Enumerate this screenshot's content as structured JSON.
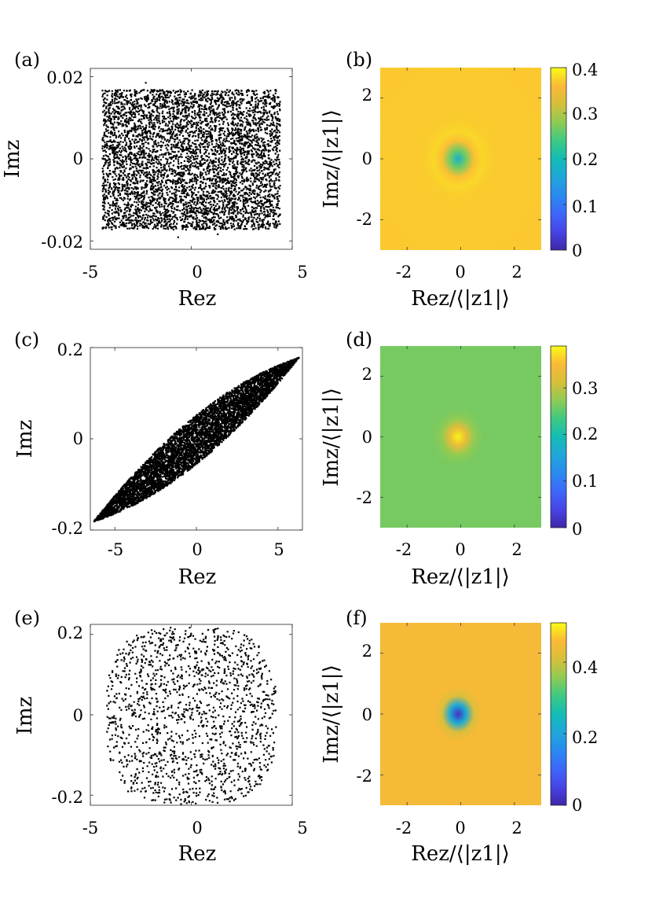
{
  "figure": {
    "panel_labels": [
      "(a)",
      "(b)",
      "(c)",
      "(d)",
      "(e)",
      "(f)"
    ]
  },
  "chart_data": [
    {
      "id": "a",
      "type": "scatter",
      "xlabel": "Rez",
      "ylabel": "Imz",
      "xlim": [
        -5,
        5
      ],
      "ylim": [
        -0.022,
        0.022
      ],
      "xticks": [
        -5,
        0,
        5
      ],
      "xtick_labels": [
        "-5",
        "0",
        "5"
      ],
      "yticks": [
        -0.02,
        0,
        0.02
      ],
      "ytick_labels": [
        "-0.02",
        "0",
        "0.02"
      ],
      "color": "#000000",
      "distribution": {
        "shape": "rectangle",
        "x_range": [
          -4.4,
          4.4
        ],
        "y_range": [
          -0.017,
          0.017
        ],
        "n_points": 5000
      }
    },
    {
      "id": "b",
      "type": "heatmap",
      "xlabel": "Rez/⟨|z1|⟩",
      "ylabel": "Imz/⟨|z1|⟩",
      "xlim": [
        -3,
        3
      ],
      "ylim": [
        -3,
        3
      ],
      "xticks": [
        -2,
        0,
        2
      ],
      "xtick_labels": [
        "-2",
        "0",
        "2"
      ],
      "yticks": [
        -2,
        0,
        2
      ],
      "ytick_labels": [
        "-2",
        "0",
        "2"
      ],
      "clim": [
        0,
        0.4
      ],
      "colorbar_ticks": [
        0,
        0.1,
        0.2,
        0.3,
        0.4
      ],
      "colorbar_tick_labels": [
        "0",
        "0.1",
        "0.2",
        "0.3",
        "0.4"
      ],
      "field": {
        "background": 0.37,
        "center_value": 0.18,
        "ring_value": 0.385,
        "center": [
          -0.1,
          0
        ]
      }
    },
    {
      "id": "c",
      "type": "scatter",
      "xlabel": "Rez",
      "ylabel": "Imz",
      "xlim": [
        -6.5,
        6.5
      ],
      "ylim": [
        -0.2,
        0.2
      ],
      "xticks": [
        -5,
        0,
        5
      ],
      "xtick_labels": [
        "-5",
        "0",
        "5"
      ],
      "yticks": [
        -0.2,
        0,
        0.2
      ],
      "ytick_labels": [
        "-0.2",
        "0",
        "0.2"
      ],
      "color": "#000000",
      "distribution": {
        "shape": "ellipse",
        "semi_major_end": [
          6.3,
          0.18
        ],
        "semi_minor": 0.045,
        "n_points": 6000
      }
    },
    {
      "id": "d",
      "type": "heatmap",
      "xlabel": "Rez/⟨|z1|⟩",
      "ylabel": "Imz/⟨|z1|⟩",
      "xlim": [
        -3,
        3
      ],
      "ylim": [
        -3,
        3
      ],
      "xticks": [
        -2,
        0,
        2
      ],
      "xtick_labels": [
        "-2",
        "0",
        "2"
      ],
      "yticks": [
        -2,
        0,
        2
      ],
      "ytick_labels": [
        "-2",
        "0",
        "2"
      ],
      "clim": [
        0,
        0.39
      ],
      "colorbar_ticks": [
        0,
        0.1,
        0.2,
        0.3
      ],
      "colorbar_tick_labels": [
        "0",
        "0.1",
        "0.2",
        "0.3"
      ],
      "field": {
        "background": 0.262,
        "center_value": 0.385,
        "ring_value": 0.262,
        "center": [
          -0.1,
          0
        ]
      }
    },
    {
      "id": "e",
      "type": "scatter",
      "xlabel": "Rez",
      "ylabel": "Imz",
      "xlim": [
        -5,
        5
      ],
      "ylim": [
        -0.225,
        0.225
      ],
      "xticks": [
        -5,
        0,
        5
      ],
      "xtick_labels": [
        "-5",
        "0",
        "5"
      ],
      "yticks": [
        -0.2,
        0,
        0.2
      ],
      "ytick_labels": [
        "-0.2",
        "0",
        "0.2"
      ],
      "color": "#000000",
      "distribution": {
        "shape": "superellipse",
        "x_range": [
          -4.2,
          4.2
        ],
        "y_range": [
          -0.22,
          0.22
        ],
        "n_points": 1500
      }
    },
    {
      "id": "f",
      "type": "heatmap",
      "xlabel": "Rez/⟨|z1|⟩",
      "ylabel": "Imz/⟨|z1|⟩",
      "xlim": [
        -3,
        3
      ],
      "ylim": [
        -3,
        3
      ],
      "xticks": [
        -2,
        0,
        2
      ],
      "xtick_labels": [
        "-2",
        "0",
        "2"
      ],
      "yticks": [
        -2,
        0,
        2
      ],
      "ytick_labels": [
        "-2",
        "0",
        "2"
      ],
      "clim": [
        0,
        0.51
      ],
      "colorbar_ticks": [
        0,
        0.2,
        0.4
      ],
      "colorbar_tick_labels": [
        "0",
        "0.2",
        "0.4"
      ],
      "field": {
        "background": 0.45,
        "center_value": 0.02,
        "ring_value": 0.46,
        "center": [
          -0.1,
          0
        ]
      }
    }
  ]
}
